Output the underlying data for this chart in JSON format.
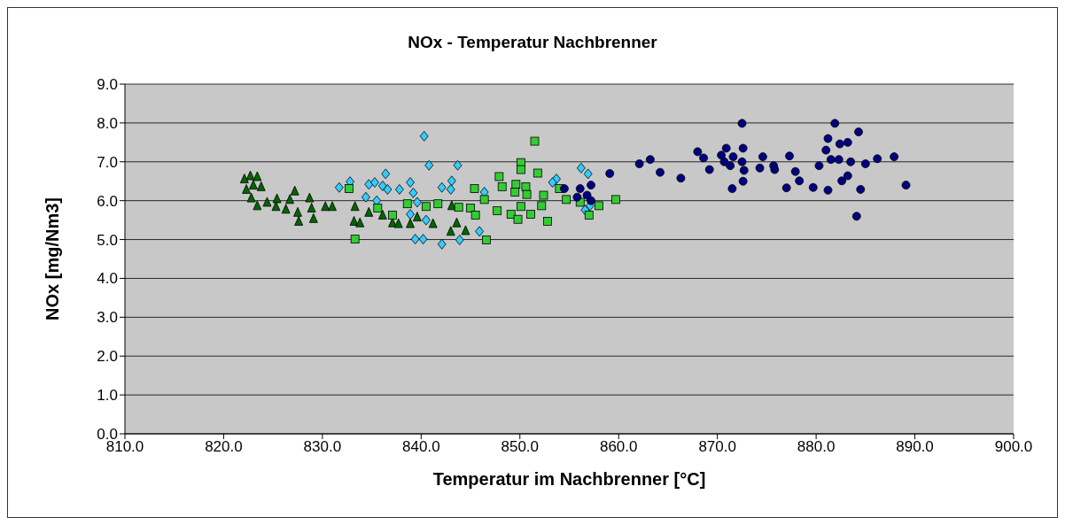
{
  "chart_data": {
    "type": "scatter",
    "title": "NOx - Temperatur Nachbrenner",
    "xlabel": "Temperatur im Nachbrenner [°C]",
    "ylabel": "NOx [mg/Nm3]",
    "xlim": [
      810,
      900
    ],
    "ylim": [
      0,
      9
    ],
    "xticks": [
      {
        "value": 810,
        "label": "810.0"
      },
      {
        "value": 820,
        "label": "820.0"
      },
      {
        "value": 830,
        "label": "830.0"
      },
      {
        "value": 840,
        "label": "840.0"
      },
      {
        "value": 850,
        "label": "850.0"
      },
      {
        "value": 860,
        "label": "860.0"
      },
      {
        "value": 870,
        "label": "870.0"
      },
      {
        "value": 880,
        "label": "880.0"
      },
      {
        "value": 890,
        "label": "890.0"
      },
      {
        "value": 900,
        "label": "900.0"
      }
    ],
    "yticks": [
      {
        "value": 0,
        "label": "0.0"
      },
      {
        "value": 1,
        "label": "1.0"
      },
      {
        "value": 2,
        "label": "2.0"
      },
      {
        "value": 3,
        "label": "3.0"
      },
      {
        "value": 4,
        "label": "4.0"
      },
      {
        "value": 5,
        "label": "5.0"
      },
      {
        "value": 6,
        "label": "6.0"
      },
      {
        "value": 7,
        "label": "7.0"
      },
      {
        "value": 8,
        "label": "8.0"
      },
      {
        "value": 9,
        "label": "9.0"
      }
    ],
    "grid": "y",
    "legend": false,
    "series": [
      {
        "color": "#006600",
        "marker": "triangle",
        "x": [
          822.1,
          822.7,
          823.4,
          823,
          823.8,
          822.3,
          822.8,
          823.4,
          824.4,
          825.4,
          825.3,
          826.3,
          827.2,
          826.7,
          827.5,
          827.6,
          828.7,
          828.9,
          829.1,
          830.3,
          831,
          833.3,
          833.2,
          833.8,
          834.7,
          836.1,
          837.1,
          837.7,
          838.9,
          839.6,
          841.2,
          843,
          843.1,
          843.6,
          844.5
        ],
        "values": [
          6.56,
          6.64,
          6.62,
          6.4,
          6.36,
          6.29,
          6.07,
          5.87,
          5.96,
          6.05,
          5.85,
          5.78,
          6.25,
          6.03,
          5.7,
          5.47,
          6.07,
          5.81,
          5.54,
          5.85,
          5.85,
          5.85,
          5.47,
          5.43,
          5.7,
          5.63,
          5.43,
          5.41,
          5.41,
          5.58,
          5.41,
          5.21,
          5.87,
          5.43,
          5.23
        ]
      },
      {
        "color": "#33ccff",
        "marker": "diamond",
        "x": [
          831.7,
          832.8,
          834.7,
          835.3,
          836.4,
          836.1,
          836.6,
          837.8,
          838.9,
          839.2,
          840.3,
          840.8,
          843.7,
          843.1,
          842.1,
          843,
          834.4,
          835.5,
          839.6,
          838.9,
          840.5,
          839.4,
          840.2,
          842.1,
          843.9,
          846.4,
          845.9,
          856.2,
          856.9,
          853.7,
          853.3,
          856.6,
          857.1
        ],
        "values": [
          6.34,
          6.49,
          6.42,
          6.47,
          6.69,
          6.38,
          6.29,
          6.29,
          6.47,
          6.2,
          7.66,
          6.91,
          6.91,
          6.51,
          6.34,
          6.29,
          6.09,
          6.0,
          5.96,
          5.65,
          5.5,
          5.01,
          5.01,
          4.88,
          4.99,
          6.22,
          5.21,
          6.84,
          6.69,
          6.56,
          6.47,
          5.76,
          5.87
        ]
      },
      {
        "color": "#33cc33",
        "marker": "square",
        "x": [
          832.7,
          833.3,
          835.6,
          837.1,
          838.6,
          840.5,
          841.7,
          843.8,
          851.5,
          850.1,
          850.1,
          851.8,
          847.9,
          848.2,
          849.6,
          850.6,
          849.5,
          850.7,
          852.4,
          845.4,
          846.4,
          845,
          845.5,
          847.7,
          850.1,
          852.2,
          849.1,
          849.8,
          851.1,
          852.8,
          846.6,
          854.7,
          858,
          859.7,
          856.1,
          857,
          854
        ],
        "values": [
          6.31,
          5.01,
          5.81,
          5.63,
          5.92,
          5.85,
          5.92,
          5.83,
          7.53,
          6.98,
          6.8,
          6.71,
          6.62,
          6.36,
          6.42,
          6.36,
          6.22,
          6.16,
          6.14,
          6.31,
          6.03,
          5.81,
          5.63,
          5.74,
          5.85,
          5.87,
          5.65,
          5.52,
          5.65,
          5.47,
          4.99,
          6.03,
          5.87,
          6.03,
          5.96,
          5.63,
          6.31
        ]
      },
      {
        "color": "#000080",
        "marker": "circle",
        "x": [
          854.5,
          856.1,
          857.2,
          855.8,
          856.8,
          857.2,
          859.1,
          862.1,
          863.2,
          864.2,
          866.3,
          868,
          868.6,
          869.2,
          870.4,
          870.7,
          870.9,
          871.3,
          871.6,
          872.5,
          872.6,
          872.5,
          872.7,
          872.6,
          871.5,
          874.4,
          874.6,
          874.3,
          875.7,
          875.8,
          877.3,
          877.9,
          878.3,
          877,
          880.3,
          881,
          881.2,
          881.9,
          879.7,
          881.2,
          881.5,
          882.3,
          882.4,
          883.2,
          882.6,
          883.2,
          883.5,
          884.3,
          884.5,
          884.1,
          885,
          886.2,
          887.9,
          889.1
        ],
        "values": [
          6.31,
          6.31,
          6.4,
          6.09,
          6.14,
          6.0,
          6.7,
          6.95,
          7.06,
          6.73,
          6.58,
          7.26,
          7.1,
          6.8,
          7.17,
          7.0,
          7.35,
          6.9,
          7.13,
          7.99,
          7.35,
          7.0,
          6.78,
          6.5,
          6.31,
          null,
          7.13,
          6.84,
          6.9,
          6.8,
          7.15,
          6.75,
          6.51,
          6.33,
          6.9,
          7.3,
          7.6,
          7.99,
          6.34,
          6.27,
          7.06,
          7.06,
          7.46,
          7.5,
          6.51,
          6.64,
          7.0,
          7.77,
          6.29,
          5.6,
          6.95,
          7.08,
          7.13,
          6.4
        ]
      }
    ]
  }
}
